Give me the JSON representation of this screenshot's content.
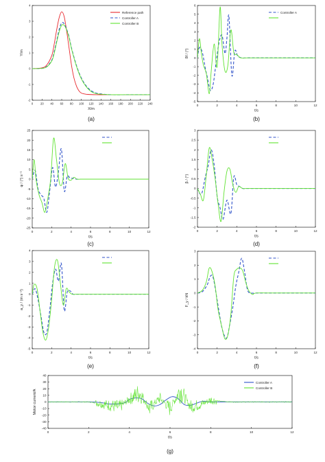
{
  "colors": {
    "reference": "#e8262b",
    "controller_a": "#2f52c9",
    "controller_b": "#5fe330",
    "axis": "#000000"
  },
  "chart_data": [
    {
      "id": "a",
      "type": "line",
      "panel_label": "(a)",
      "xlabel": "X/m",
      "ylabel": "Y/m",
      "xlim": [
        0,
        240
      ],
      "ylim": [
        -2,
        4
      ],
      "xticks": [
        0,
        20,
        40,
        60,
        80,
        100,
        120,
        140,
        160,
        180,
        200,
        220,
        240
      ],
      "yticks": [
        -2,
        -1,
        0,
        1,
        2,
        3,
        4
      ],
      "legend": {
        "position": "top-right",
        "entries": [
          "Reference path",
          "Controller A",
          "Controller B"
        ]
      },
      "series": [
        {
          "name": "Reference path",
          "color_key": "reference",
          "dash": "solid",
          "x": [
            0,
            20,
            30,
            40,
            45,
            50,
            55,
            60,
            65,
            70,
            75,
            80,
            85,
            90,
            95,
            100,
            110,
            130,
            160,
            200,
            240
          ],
          "y": [
            0,
            0.05,
            0.25,
            0.85,
            1.6,
            2.5,
            3.25,
            3.6,
            3.3,
            2.4,
            1.3,
            0.2,
            -0.6,
            -1.1,
            -1.4,
            -1.55,
            -1.62,
            -1.65,
            -1.65,
            -1.65,
            -1.65
          ]
        },
        {
          "name": "Controller A",
          "color_key": "controller_a",
          "dash": "dashed",
          "x": [
            0,
            20,
            30,
            40,
            45,
            50,
            55,
            60,
            65,
            70,
            75,
            80,
            90,
            100,
            110,
            120,
            130,
            140,
            160,
            200,
            240
          ],
          "y": [
            0,
            0.02,
            0.15,
            0.55,
            1.1,
            1.8,
            2.5,
            2.9,
            2.85,
            2.5,
            2.0,
            1.3,
            0.2,
            -0.6,
            -1.1,
            -1.4,
            -1.55,
            -1.6,
            -1.65,
            -1.65,
            -1.65
          ]
        },
        {
          "name": "Controller B",
          "color_key": "controller_b",
          "dash": "solid",
          "x": [
            0,
            20,
            30,
            40,
            45,
            50,
            55,
            60,
            65,
            70,
            75,
            80,
            90,
            100,
            110,
            120,
            130,
            140,
            160,
            200,
            240
          ],
          "y": [
            0,
            0.02,
            0.12,
            0.5,
            1.0,
            1.7,
            2.35,
            2.75,
            2.75,
            2.45,
            1.95,
            1.25,
            0.15,
            -0.65,
            -1.15,
            -1.45,
            -1.58,
            -1.62,
            -1.65,
            -1.65,
            -1.65
          ]
        }
      ]
    },
    {
      "id": "b",
      "type": "line",
      "panel_label": "(b)",
      "xlabel": "t/s",
      "ylabel": "δf / (°)",
      "xlim": [
        0,
        12
      ],
      "ylim": [
        -5,
        6
      ],
      "xticks": [
        0,
        2,
        4,
        6,
        8,
        10,
        12
      ],
      "yticks": [
        -5,
        -4,
        -3,
        -2,
        -1,
        0,
        1,
        2,
        3,
        4,
        5,
        6
      ],
      "legend": {
        "position": "top-right",
        "entries": [
          "Controller A",
          ""
        ]
      },
      "series": [
        {
          "name": "Controller A",
          "color_key": "controller_a",
          "dash": "dashed",
          "x": [
            0,
            0.2,
            0.5,
            0.8,
            1.0,
            1.3,
            1.6,
            1.9,
            2.2,
            2.5,
            2.8,
            3.0,
            3.2,
            3.5,
            3.8,
            4.1,
            4.5,
            5,
            6,
            8,
            12
          ],
          "y": [
            0,
            1.2,
            0.6,
            -1.2,
            -2.2,
            -3.7,
            -3.0,
            -0.5,
            1.8,
            2.6,
            0.5,
            2.3,
            4.8,
            -2.0,
            0.8,
            0.2,
            0,
            0,
            0,
            0,
            0
          ]
        },
        {
          "name": "",
          "color_key": "controller_b",
          "dash": "solid",
          "x": [
            0,
            0.2,
            0.4,
            0.6,
            0.9,
            1.2,
            1.4,
            1.7,
            2.0,
            2.3,
            2.5,
            2.8,
            3.1,
            3.4,
            3.7,
            4.0,
            4.4,
            5,
            6,
            8,
            12
          ],
          "y": [
            0,
            2.2,
            0.5,
            -0.8,
            -1.8,
            -4.1,
            -1.5,
            1.6,
            -1.0,
            5.8,
            1.5,
            -1.5,
            -0.8,
            3.2,
            0.6,
            0.4,
            0,
            0,
            0,
            0,
            0
          ]
        }
      ]
    },
    {
      "id": "c",
      "type": "line",
      "panel_label": "(c)",
      "xlabel": "t/s",
      "ylabel": "φ / (°) s⁻¹",
      "xlim": [
        0,
        12
      ],
      "ylim": [
        -25,
        25
      ],
      "xticks": [
        0,
        2,
        4,
        6,
        8,
        10,
        12
      ],
      "yticks": [
        -25,
        -20,
        -15,
        -10,
        -5,
        0,
        5,
        10,
        15,
        20,
        25
      ],
      "legend": {
        "position": "top-right",
        "entries": [
          "",
          ""
        ]
      },
      "series": [
        {
          "name": "",
          "color_key": "controller_a",
          "dash": "dashed",
          "x": [
            0,
            0.3,
            0.6,
            0.9,
            1.2,
            1.5,
            1.8,
            2.1,
            2.4,
            2.7,
            3.0,
            3.3,
            3.6,
            3.9,
            4.2,
            4.5,
            5,
            6,
            8,
            12
          ],
          "y": [
            0,
            4.5,
            -5,
            -8,
            -10,
            -17,
            -6,
            6,
            -4,
            4,
            15.5,
            -6,
            1.5,
            0.5,
            0.5,
            0,
            0,
            0,
            0,
            0
          ]
        },
        {
          "name": "",
          "color_key": "controller_b",
          "dash": "solid",
          "x": [
            0,
            0.2,
            0.4,
            0.7,
            1.0,
            1.3,
            1.6,
            1.9,
            2.2,
            2.5,
            2.8,
            3.1,
            3.4,
            3.7,
            4.0,
            4.3,
            4.6,
            5,
            6,
            8,
            12
          ],
          "y": [
            0,
            10,
            -0.5,
            -8,
            -12,
            -17,
            -10,
            0,
            21,
            10,
            -2,
            -2,
            8,
            0.5,
            -0.5,
            1,
            0,
            0,
            0,
            0,
            0
          ]
        }
      ]
    },
    {
      "id": "d",
      "type": "line",
      "panel_label": "(d)",
      "xlabel": "t/s",
      "ylabel": "β / (°)",
      "xlim": [
        0,
        12
      ],
      "ylim": [
        -2,
        3
      ],
      "xticks": [
        0,
        2,
        4,
        6,
        8,
        10,
        12
      ],
      "yticks": [
        -2,
        -1.5,
        -1,
        -0.5,
        0,
        0.5,
        1,
        1.5,
        2,
        2.5,
        3
      ],
      "legend": {
        "position": "top-right",
        "entries": [
          "",
          ""
        ]
      },
      "series": [
        {
          "name": "",
          "color_key": "controller_a",
          "dash": "dashed",
          "x": [
            0,
            0.4,
            0.8,
            1.1,
            1.4,
            1.7,
            2.0,
            2.3,
            2.6,
            3.0,
            3.4,
            3.7,
            4.0,
            4.3,
            4.6,
            5,
            6,
            8,
            12
          ],
          "y": [
            0,
            -0.3,
            0.6,
            1.2,
            2.0,
            1.2,
            -0.4,
            -1.0,
            -1.6,
            -0.6,
            -1.3,
            0.6,
            0.2,
            0.1,
            0,
            0,
            0,
            0,
            0
          ]
        },
        {
          "name": "",
          "color_key": "controller_b",
          "dash": "solid",
          "x": [
            0,
            0.3,
            0.6,
            0.9,
            1.2,
            1.5,
            1.8,
            2.1,
            2.4,
            2.7,
            3.0,
            3.3,
            3.6,
            3.9,
            4.2,
            4.6,
            5,
            6,
            8,
            12
          ],
          "y": [
            0,
            -0.3,
            -0.6,
            0.7,
            2.1,
            1.5,
            0.5,
            -0.8,
            -1.7,
            -0.2,
            0.9,
            1.0,
            0.2,
            -0.2,
            0.1,
            0,
            0,
            0,
            0,
            0
          ]
        }
      ]
    },
    {
      "id": "e",
      "type": "line",
      "panel_label": "(e)",
      "xlabel": "t/s",
      "ylabel": "a_y / (m s⁻²)",
      "xlim": [
        0,
        12
      ],
      "ylim": [
        -5,
        4
      ],
      "xticks": [
        0,
        2,
        4,
        6,
        8,
        10,
        12
      ],
      "yticks": [
        -5,
        -4,
        -3,
        -2,
        -1,
        0,
        1,
        2,
        3,
        4
      ],
      "legend": {
        "position": "top-right",
        "entries": [
          "",
          ""
        ]
      },
      "series": [
        {
          "name": "",
          "color_key": "controller_a",
          "dash": "dashed",
          "x": [
            0,
            0.3,
            0.6,
            0.9,
            1.2,
            1.5,
            1.8,
            2.1,
            2.4,
            2.7,
            3.0,
            3.3,
            3.6,
            3.9,
            4.2,
            4.6,
            5,
            6,
            8,
            12
          ],
          "y": [
            0,
            0.5,
            -0.5,
            -2,
            -3.5,
            -3.5,
            -1.5,
            1,
            2.3,
            1.2,
            2.8,
            -1.5,
            0.2,
            0.3,
            0,
            0,
            0,
            0,
            0,
            0
          ]
        },
        {
          "name": "",
          "color_key": "controller_b",
          "dash": "solid",
          "x": [
            0,
            0.2,
            0.5,
            0.8,
            1.1,
            1.4,
            1.7,
            2.0,
            2.3,
            2.6,
            2.9,
            3.2,
            3.5,
            3.8,
            4.1,
            4.5,
            5,
            6,
            8,
            12
          ],
          "y": [
            0,
            0.9,
            0.5,
            -1.5,
            -3.5,
            -4.2,
            -3.0,
            -0.5,
            2.5,
            3.1,
            1.0,
            -1.0,
            0.5,
            0.2,
            0,
            0,
            0,
            0,
            0,
            0
          ]
        }
      ]
    },
    {
      "id": "f",
      "type": "line",
      "panel_label": "(f)",
      "xlabel": "t/s",
      "ylabel": "F_y / kN",
      "xlim": [
        0,
        12
      ],
      "ylim": [
        -4,
        3
      ],
      "xticks": [
        0,
        2,
        4,
        6,
        8,
        10,
        12
      ],
      "yticks": [
        -4,
        -3,
        -2,
        -1,
        0,
        1,
        2,
        3
      ],
      "legend": {
        "position": "top-right",
        "entries": [
          "",
          ""
        ]
      },
      "series": [
        {
          "name": "",
          "color_key": "controller_a",
          "dash": "dashed",
          "x": [
            0,
            0.5,
            1.0,
            1.3,
            1.6,
            2.0,
            2.4,
            2.7,
            3.0,
            3.3,
            3.6,
            3.9,
            4.2,
            4.5,
            4.8,
            5.1,
            5.5,
            6,
            8,
            12
          ],
          "y": [
            0,
            0.1,
            0.6,
            1.2,
            1.1,
            -0.5,
            -2.2,
            -3.0,
            -3.2,
            -2.2,
            -1.0,
            0.5,
            1.5,
            2.5,
            1.5,
            0.2,
            0,
            0,
            0,
            0
          ]
        },
        {
          "name": "",
          "color_key": "controller_b",
          "dash": "solid",
          "x": [
            0,
            0.5,
            0.9,
            1.2,
            1.5,
            1.8,
            2.1,
            2.5,
            2.8,
            3.1,
            3.4,
            3.7,
            4.0,
            4.3,
            4.6,
            4.9,
            5.2,
            5.6,
            6,
            8,
            12
          ],
          "y": [
            0,
            0.2,
            0.8,
            1.8,
            1.5,
            0.5,
            -1.2,
            -2.5,
            -3.3,
            -3.0,
            -1.5,
            1.2,
            1.7,
            1.8,
            1.6,
            0.8,
            0.2,
            -0.1,
            0,
            0,
            0
          ]
        }
      ]
    },
    {
      "id": "g",
      "type": "line",
      "panel_label": "(g)",
      "xlabel": "t/s",
      "ylabel": "Motor current/A",
      "xlim": [
        0,
        12
      ],
      "ylim": [
        -40,
        40
      ],
      "xticks": [
        0,
        2,
        4,
        6,
        8,
        10,
        12
      ],
      "yticks": [
        -40,
        -30,
        -20,
        -10,
        0,
        10,
        20,
        30,
        40
      ],
      "legend": {
        "position": "top-right",
        "entries": [
          "Controller A",
          "Controller B"
        ]
      },
      "series": [
        {
          "name": "Controller A",
          "color_key": "controller_a",
          "dash": "solid",
          "x": [
            0,
            2,
            2.6,
            3.0,
            3.4,
            3.8,
            4.0,
            4.3,
            4.6,
            4.9,
            5.2,
            5.5,
            5.8,
            6.1,
            6.4,
            6.7,
            7.0,
            7.3,
            7.6,
            8.0,
            8.5,
            9,
            10,
            12
          ],
          "y": [
            0,
            0,
            -1,
            -3,
            -3,
            -1,
            4,
            6,
            5,
            -2,
            -6,
            -4,
            3,
            8,
            5,
            -4,
            -5,
            -2,
            1,
            0,
            0,
            0,
            0,
            0
          ]
        },
        {
          "name": "Controller B",
          "color_key": "controller_b",
          "dash": "solid",
          "noisy": true,
          "x": [
            0,
            2,
            2.5,
            3,
            3.5,
            4,
            4.5,
            5,
            5.5,
            6,
            6.5,
            7,
            7.5,
            8,
            8.5,
            9,
            10,
            11,
            12
          ],
          "y": [
            0,
            0,
            -2,
            -5,
            -8,
            4,
            14,
            -10,
            6,
            -10,
            18,
            -7,
            -4,
            3,
            1,
            0,
            0,
            0,
            0
          ]
        }
      ]
    }
  ]
}
